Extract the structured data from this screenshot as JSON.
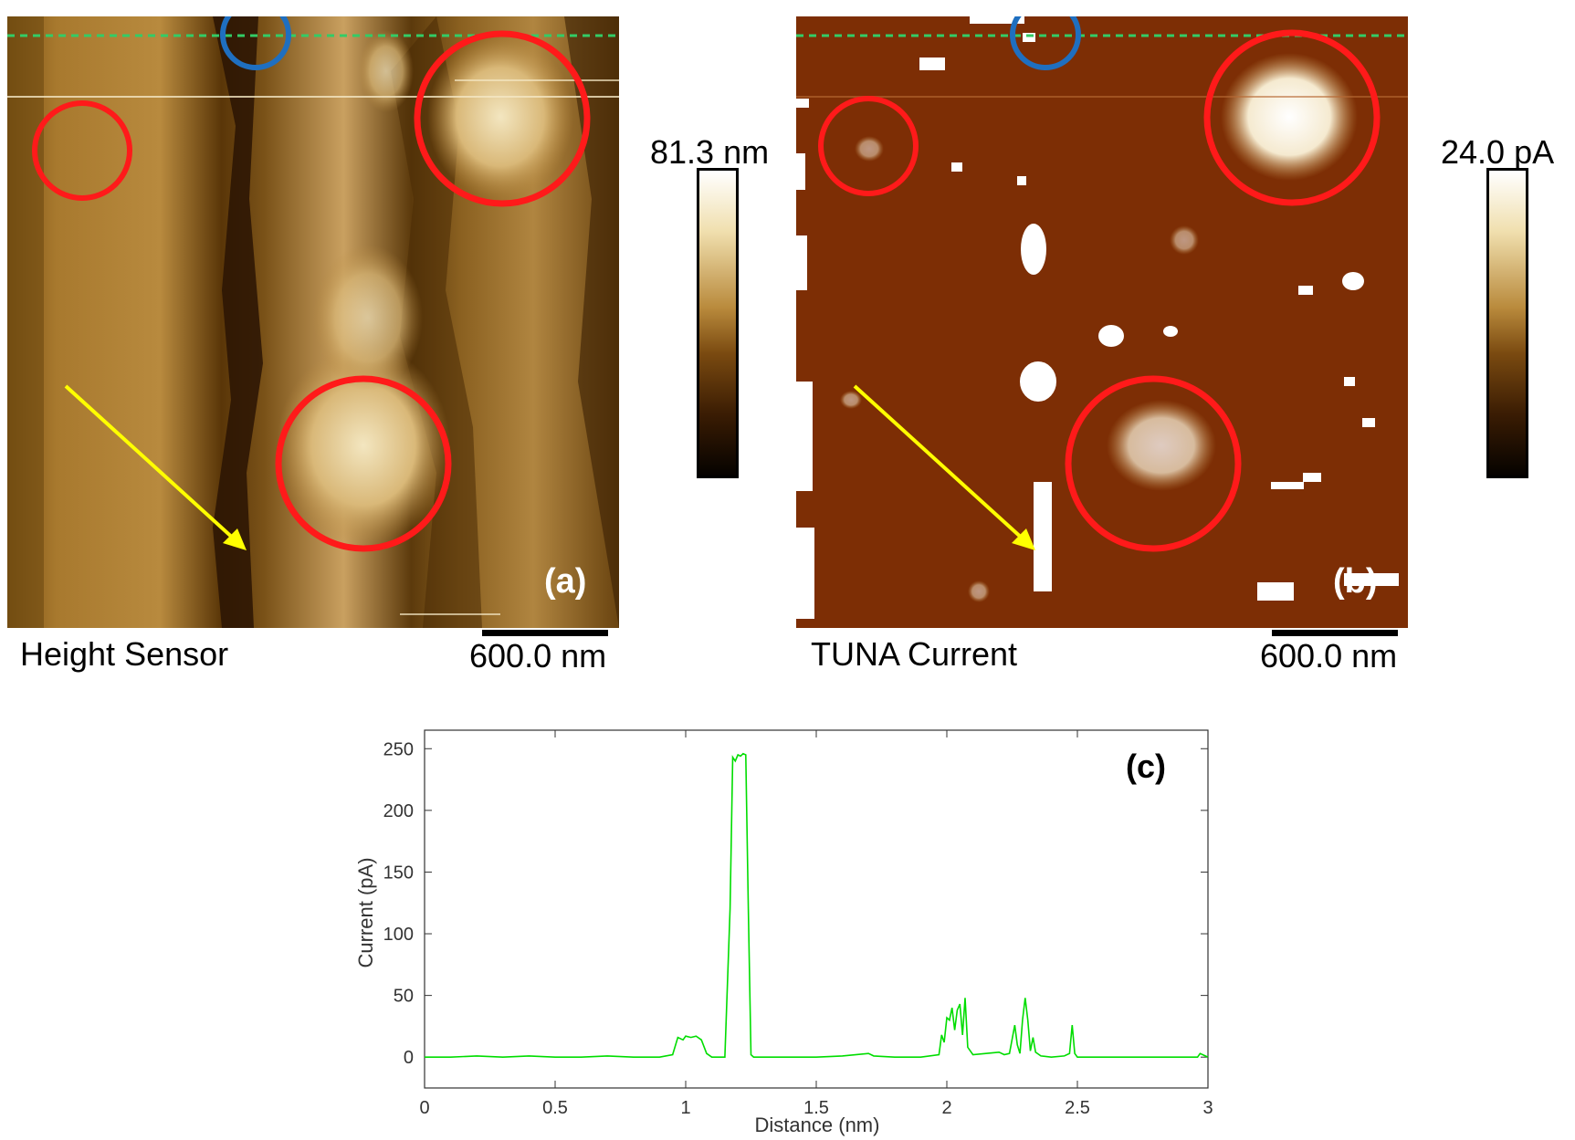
{
  "panel_a": {
    "image_label": "Height Sensor",
    "scale_bar": "600.0 nm",
    "colorbar_label": "81.3 nm",
    "letter": "(a)"
  },
  "panel_b": {
    "image_label": "TUNA Current",
    "scale_bar": "600.0 nm",
    "colorbar_label": "24.0 pA",
    "letter": "(b)"
  },
  "colors": {
    "height_dark": "#1a0d00",
    "height_mid": "#8a5a1a",
    "height_light": "#f3e6b8",
    "current_bg": "#7d2e05",
    "annot_red": "#ff1a1a",
    "annot_blue": "#1f6fc0",
    "annot_yellow": "#ffff00",
    "annot_green": "#33cc66",
    "line_green": "#00dd00"
  },
  "chart_data": {
    "type": "line",
    "title": "",
    "panel_letter": "(c)",
    "xlabel": "Distance (nm)",
    "ylabel": "Current (pA)",
    "xlim": [
      0,
      3
    ],
    "ylim": [
      -25,
      265
    ],
    "x_ticks": [
      "0",
      "0.5",
      "1",
      "1.5",
      "2",
      "2.5",
      "3"
    ],
    "y_ticks": [
      "0",
      "50",
      "100",
      "150",
      "200",
      "250"
    ],
    "grid": false,
    "series": [
      {
        "color": "#00dd00",
        "x": [
          0,
          0.1,
          0.2,
          0.3,
          0.4,
          0.5,
          0.6,
          0.7,
          0.8,
          0.9,
          0.95,
          0.97,
          0.99,
          1.0,
          1.02,
          1.04,
          1.06,
          1.08,
          1.1,
          1.12,
          1.15,
          1.17,
          1.18,
          1.19,
          1.2,
          1.21,
          1.22,
          1.23,
          1.24,
          1.25,
          1.26,
          1.3,
          1.4,
          1.5,
          1.6,
          1.7,
          1.72,
          1.8,
          1.9,
          1.97,
          1.98,
          1.99,
          2.0,
          2.01,
          2.02,
          2.03,
          2.04,
          2.05,
          2.06,
          2.07,
          2.08,
          2.1,
          2.15,
          2.2,
          2.22,
          2.24,
          2.26,
          2.27,
          2.28,
          2.29,
          2.3,
          2.31,
          2.32,
          2.33,
          2.34,
          2.36,
          2.4,
          2.45,
          2.47,
          2.48,
          2.49,
          2.5,
          2.6,
          2.7,
          2.8,
          2.9,
          2.96,
          2.97,
          2.99,
          3.0
        ],
        "y": [
          0,
          0,
          1,
          0,
          1,
          0,
          0,
          1,
          0,
          0,
          2,
          16,
          14,
          17,
          16,
          17,
          14,
          3,
          0,
          0,
          0,
          120,
          243,
          240,
          245,
          244,
          246,
          245,
          120,
          2,
          0,
          0,
          0,
          0,
          1,
          3,
          1,
          0,
          0,
          2,
          18,
          12,
          32,
          30,
          40,
          22,
          38,
          43,
          18,
          48,
          8,
          2,
          3,
          4,
          2,
          3,
          26,
          10,
          3,
          30,
          48,
          30,
          5,
          16,
          4,
          1,
          0,
          1,
          3,
          26,
          3,
          0,
          0,
          0,
          0,
          0,
          0,
          3,
          1,
          0
        ]
      }
    ]
  }
}
